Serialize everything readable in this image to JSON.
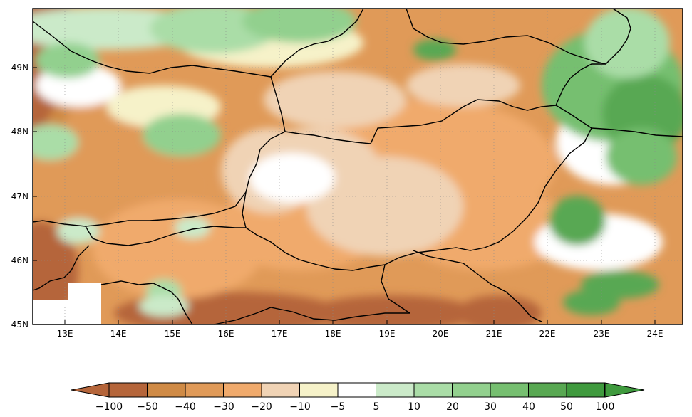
{
  "map": {
    "lat_labels": [
      "45N",
      "46N",
      "47N",
      "48N",
      "49N"
    ],
    "lon_labels": [
      "13E",
      "14E",
      "15E",
      "16E",
      "17E",
      "18E",
      "19E",
      "20E",
      "21E",
      "22E",
      "23E",
      "24E"
    ]
  },
  "colorbar": {
    "labels": [
      "−100",
      "−50",
      "−40",
      "−30",
      "−20",
      "−10",
      "−5",
      "5",
      "10",
      "20",
      "30",
      "40",
      "50",
      "100"
    ],
    "colors": [
      "#b5653a",
      "#cf8a45",
      "#e09a58",
      "#f0aa6c",
      "#f0d3b5",
      "#f6f2c9",
      "#ffffff",
      "#cbeac9",
      "#aadda7",
      "#92d08e",
      "#76bf70",
      "#58a852",
      "#3f9a3e"
    ]
  }
}
